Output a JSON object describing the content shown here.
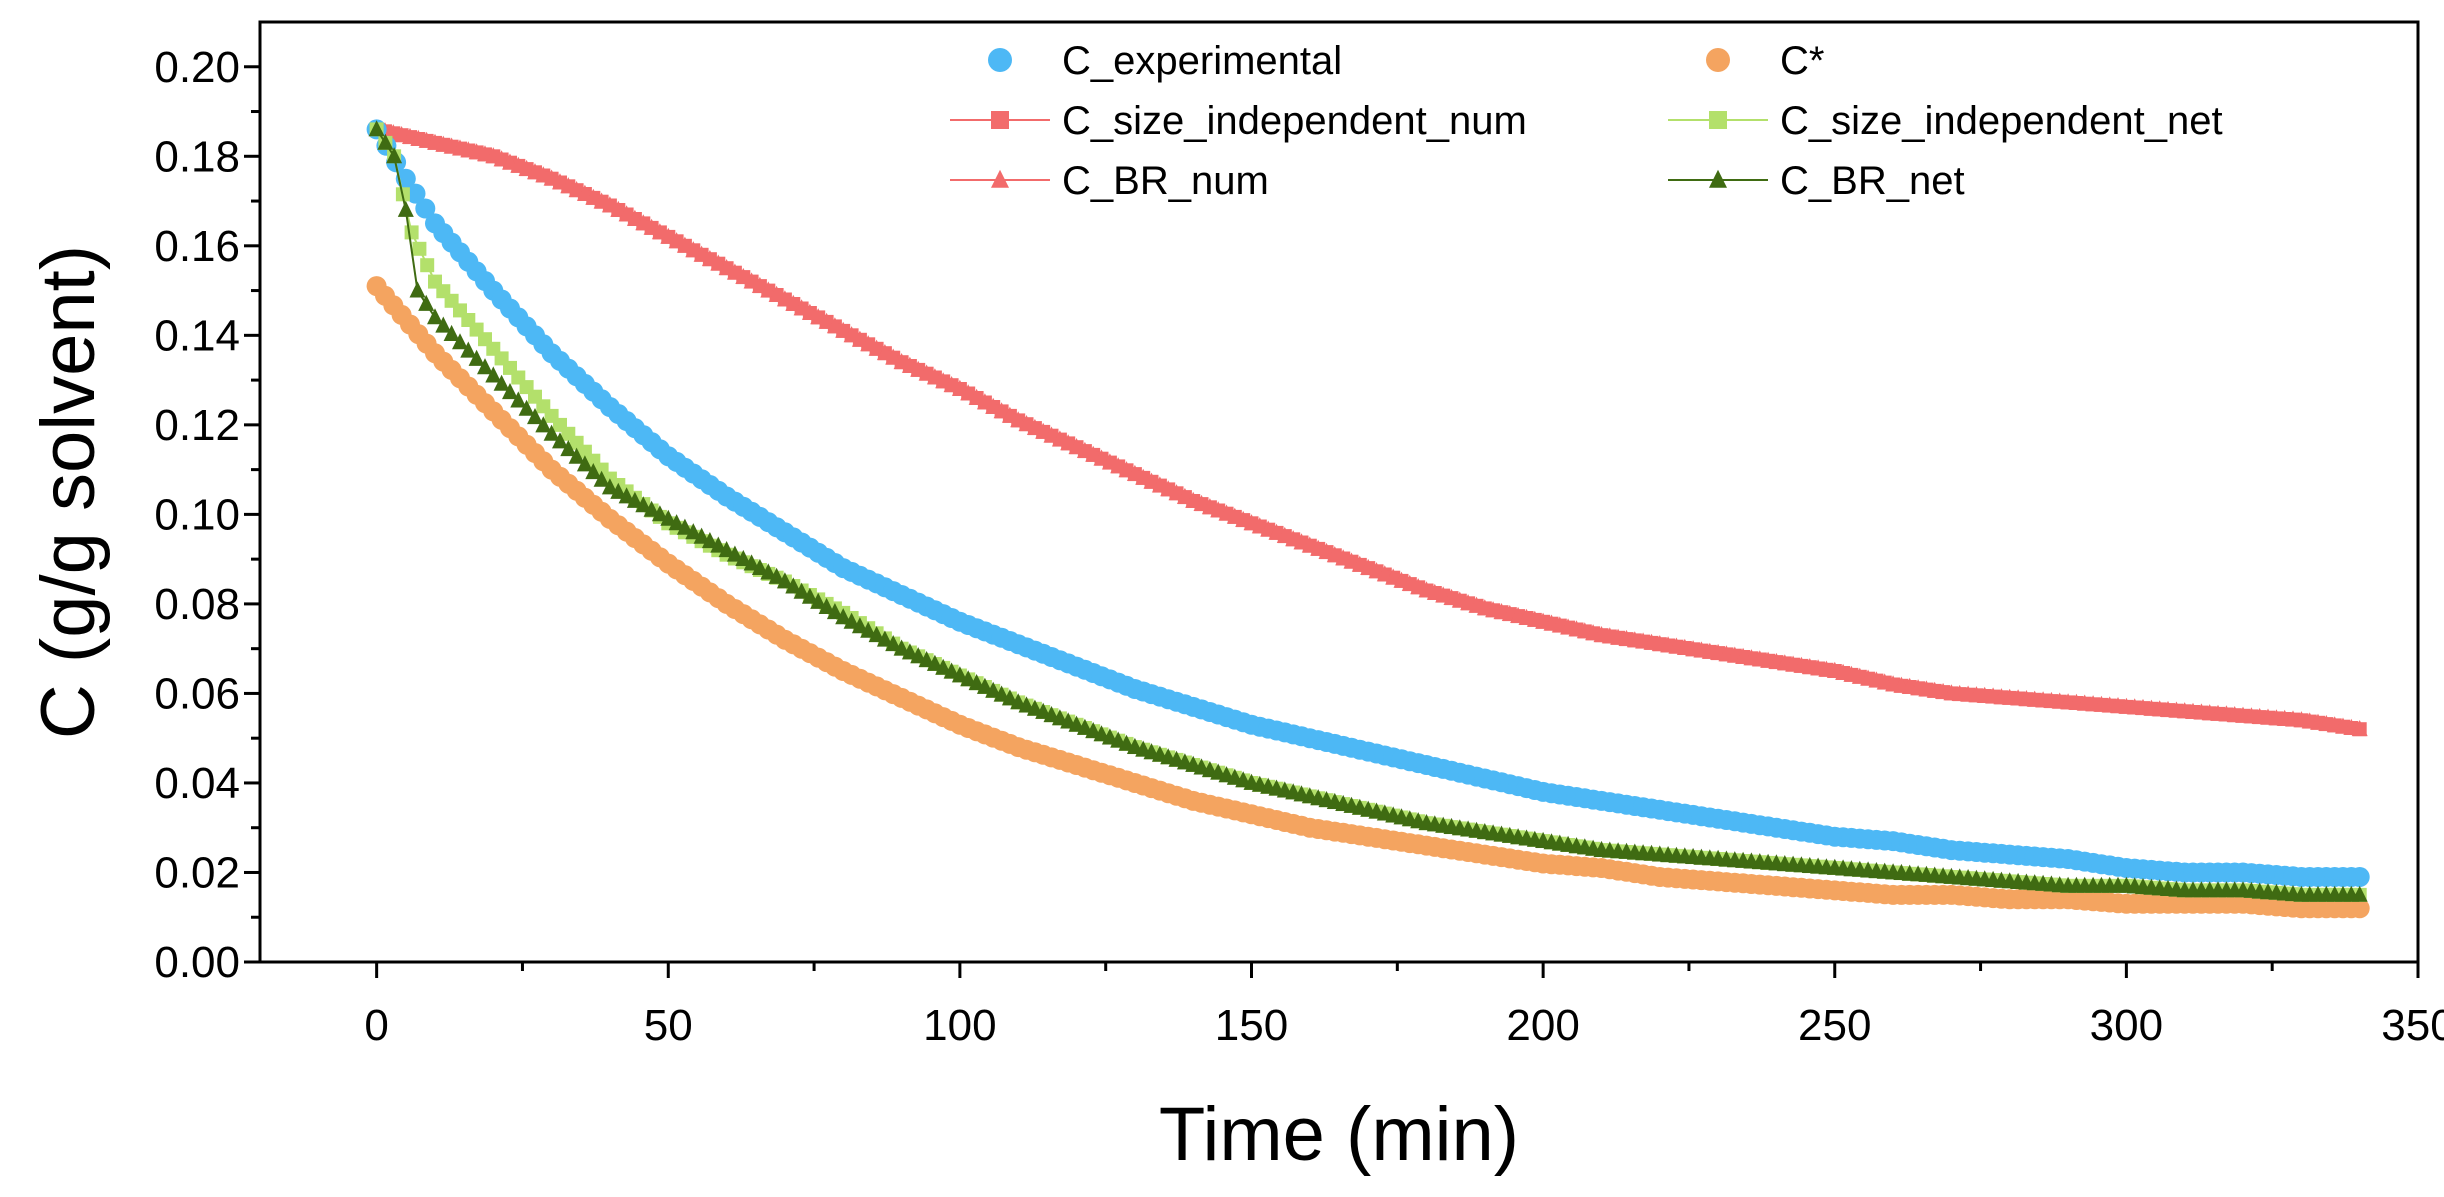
{
  "chart_data": {
    "type": "scatter",
    "title": "",
    "xlabel": "Time (min)",
    "ylabel": "C (g/g solvent)",
    "xlim": [
      -20,
      350
    ],
    "ylim": [
      0,
      0.21
    ],
    "xticks": [
      0,
      50,
      100,
      150,
      200,
      250,
      300,
      350
    ],
    "xtick_labels": [
      "0",
      "50",
      "100",
      "150",
      "200",
      "250",
      "300",
      "350"
    ],
    "yticks": [
      0.0,
      0.02,
      0.04,
      0.06,
      0.08,
      0.1,
      0.12,
      0.14,
      0.16,
      0.18,
      0.2
    ],
    "ytick_labels": [
      "0.00",
      "0.02",
      "0.04",
      "0.06",
      "0.08",
      "0.10",
      "0.12",
      "0.14",
      "0.16",
      "0.18",
      "0.20"
    ],
    "grid": false,
    "legend_position": "top-right",
    "series": [
      {
        "name": "C_size_independent_num",
        "marker": "square",
        "color": "#f26b6b",
        "points": [
          [
            0,
            0.186
          ],
          [
            10,
            0.183
          ],
          [
            20,
            0.18
          ],
          [
            30,
            0.175
          ],
          [
            40,
            0.169
          ],
          [
            50,
            0.162
          ],
          [
            60,
            0.155
          ],
          [
            70,
            0.148
          ],
          [
            80,
            0.141
          ],
          [
            90,
            0.134
          ],
          [
            100,
            0.128
          ],
          [
            110,
            0.121
          ],
          [
            120,
            0.115
          ],
          [
            130,
            0.109
          ],
          [
            140,
            0.103
          ],
          [
            150,
            0.098
          ],
          [
            160,
            0.093
          ],
          [
            170,
            0.088
          ],
          [
            180,
            0.083
          ],
          [
            190,
            0.079
          ],
          [
            200,
            0.076
          ],
          [
            210,
            0.073
          ],
          [
            220,
            0.071
          ],
          [
            230,
            0.069
          ],
          [
            240,
            0.067
          ],
          [
            250,
            0.065
          ],
          [
            260,
            0.062
          ],
          [
            270,
            0.06
          ],
          [
            280,
            0.059
          ],
          [
            290,
            0.058
          ],
          [
            300,
            0.057
          ],
          [
            310,
            0.056
          ],
          [
            320,
            0.055
          ],
          [
            330,
            0.054
          ],
          [
            340,
            0.052
          ]
        ]
      },
      {
        "name": "C_BR_num",
        "marker": "triangle",
        "color": "#f26b6b",
        "points": [
          [
            0,
            0.186
          ],
          [
            10,
            0.183
          ],
          [
            20,
            0.18
          ],
          [
            30,
            0.175
          ],
          [
            40,
            0.169
          ],
          [
            50,
            0.162
          ],
          [
            60,
            0.155
          ],
          [
            70,
            0.148
          ],
          [
            80,
            0.141
          ],
          [
            90,
            0.134
          ],
          [
            100,
            0.128
          ],
          [
            110,
            0.121
          ],
          [
            120,
            0.115
          ],
          [
            130,
            0.109
          ],
          [
            140,
            0.103
          ],
          [
            150,
            0.098
          ],
          [
            160,
            0.093
          ],
          [
            170,
            0.088
          ],
          [
            180,
            0.083
          ],
          [
            190,
            0.079
          ],
          [
            200,
            0.076
          ],
          [
            210,
            0.073
          ],
          [
            220,
            0.071
          ],
          [
            230,
            0.069
          ],
          [
            240,
            0.067
          ],
          [
            250,
            0.065
          ],
          [
            260,
            0.062
          ],
          [
            270,
            0.06
          ],
          [
            280,
            0.059
          ],
          [
            290,
            0.058
          ],
          [
            300,
            0.057
          ],
          [
            310,
            0.056
          ],
          [
            320,
            0.055
          ],
          [
            330,
            0.054
          ],
          [
            340,
            0.052
          ]
        ]
      },
      {
        "name": "C*",
        "marker": "circle",
        "color": "#f4a460",
        "points": [
          [
            0,
            0.151
          ],
          [
            10,
            0.136
          ],
          [
            20,
            0.123
          ],
          [
            30,
            0.11
          ],
          [
            40,
            0.099
          ],
          [
            50,
            0.089
          ],
          [
            60,
            0.08
          ],
          [
            70,
            0.072
          ],
          [
            80,
            0.065
          ],
          [
            90,
            0.059
          ],
          [
            100,
            0.053
          ],
          [
            110,
            0.048
          ],
          [
            120,
            0.044
          ],
          [
            130,
            0.04
          ],
          [
            140,
            0.036
          ],
          [
            150,
            0.033
          ],
          [
            160,
            0.03
          ],
          [
            170,
            0.028
          ],
          [
            180,
            0.026
          ],
          [
            190,
            0.024
          ],
          [
            200,
            0.022
          ],
          [
            210,
            0.021
          ],
          [
            220,
            0.019
          ],
          [
            230,
            0.018
          ],
          [
            240,
            0.017
          ],
          [
            250,
            0.016
          ],
          [
            260,
            0.015
          ],
          [
            270,
            0.015
          ],
          [
            280,
            0.014
          ],
          [
            290,
            0.014
          ],
          [
            300,
            0.013
          ],
          [
            310,
            0.013
          ],
          [
            320,
            0.013
          ],
          [
            330,
            0.012
          ],
          [
            340,
            0.012
          ]
        ]
      },
      {
        "name": "C_experimental",
        "marker": "circle",
        "color": "#4db8f5",
        "points": [
          [
            0,
            0.186
          ],
          [
            5,
            0.175
          ],
          [
            10,
            0.165
          ],
          [
            20,
            0.15
          ],
          [
            30,
            0.136
          ],
          [
            40,
            0.124
          ],
          [
            50,
            0.113
          ],
          [
            60,
            0.104
          ],
          [
            70,
            0.096
          ],
          [
            80,
            0.088
          ],
          [
            90,
            0.082
          ],
          [
            100,
            0.076
          ],
          [
            110,
            0.071
          ],
          [
            120,
            0.066
          ],
          [
            130,
            0.061
          ],
          [
            140,
            0.057
          ],
          [
            150,
            0.053
          ],
          [
            160,
            0.05
          ],
          [
            170,
            0.047
          ],
          [
            180,
            0.044
          ],
          [
            190,
            0.041
          ],
          [
            200,
            0.038
          ],
          [
            210,
            0.036
          ],
          [
            220,
            0.034
          ],
          [
            230,
            0.032
          ],
          [
            240,
            0.03
          ],
          [
            250,
            0.028
          ],
          [
            260,
            0.027
          ],
          [
            270,
            0.025
          ],
          [
            280,
            0.024
          ],
          [
            290,
            0.023
          ],
          [
            300,
            0.021
          ],
          [
            310,
            0.02
          ],
          [
            320,
            0.02
          ],
          [
            330,
            0.019
          ],
          [
            340,
            0.019
          ]
        ]
      },
      {
        "name": "C_size_independent_net",
        "marker": "square",
        "color": "#b3e06b",
        "points": [
          [
            0,
            0.186
          ],
          [
            3,
            0.18
          ],
          [
            6,
            0.163
          ],
          [
            10,
            0.152
          ],
          [
            20,
            0.137
          ],
          [
            30,
            0.122
          ],
          [
            40,
            0.108
          ],
          [
            50,
            0.098
          ],
          [
            60,
            0.091
          ],
          [
            70,
            0.085
          ],
          [
            80,
            0.078
          ],
          [
            90,
            0.07
          ],
          [
            100,
            0.064
          ],
          [
            110,
            0.058
          ],
          [
            120,
            0.053
          ],
          [
            130,
            0.048
          ],
          [
            140,
            0.044
          ],
          [
            150,
            0.04
          ],
          [
            160,
            0.037
          ],
          [
            170,
            0.034
          ],
          [
            180,
            0.031
          ],
          [
            190,
            0.029
          ],
          [
            200,
            0.027
          ],
          [
            210,
            0.025
          ],
          [
            220,
            0.024
          ],
          [
            230,
            0.023
          ],
          [
            240,
            0.022
          ],
          [
            250,
            0.021
          ],
          [
            260,
            0.02
          ],
          [
            270,
            0.019
          ],
          [
            280,
            0.018
          ],
          [
            290,
            0.017
          ],
          [
            300,
            0.017
          ],
          [
            310,
            0.016
          ],
          [
            320,
            0.016
          ],
          [
            330,
            0.015
          ],
          [
            340,
            0.015
          ]
        ]
      },
      {
        "name": "C_BR_net",
        "marker": "triangle",
        "color": "#3f6b12",
        "points": [
          [
            0,
            0.186
          ],
          [
            3,
            0.18
          ],
          [
            5,
            0.168
          ],
          [
            7,
            0.15
          ],
          [
            10,
            0.144
          ],
          [
            20,
            0.131
          ],
          [
            30,
            0.118
          ],
          [
            40,
            0.106
          ],
          [
            50,
            0.099
          ],
          [
            60,
            0.092
          ],
          [
            70,
            0.085
          ],
          [
            80,
            0.077
          ],
          [
            90,
            0.07
          ],
          [
            100,
            0.064
          ],
          [
            110,
            0.058
          ],
          [
            120,
            0.053
          ],
          [
            130,
            0.048
          ],
          [
            140,
            0.044
          ],
          [
            150,
            0.04
          ],
          [
            160,
            0.037
          ],
          [
            170,
            0.034
          ],
          [
            180,
            0.031
          ],
          [
            190,
            0.029
          ],
          [
            200,
            0.027
          ],
          [
            210,
            0.025
          ],
          [
            220,
            0.024
          ],
          [
            230,
            0.023
          ],
          [
            240,
            0.022
          ],
          [
            250,
            0.021
          ],
          [
            260,
            0.02
          ],
          [
            270,
            0.019
          ],
          [
            280,
            0.018
          ],
          [
            290,
            0.017
          ],
          [
            300,
            0.017
          ],
          [
            310,
            0.016
          ],
          [
            320,
            0.016
          ],
          [
            330,
            0.015
          ],
          [
            340,
            0.015
          ]
        ]
      }
    ],
    "legend": [
      {
        "label": "C_experimental",
        "marker": "circle",
        "color": "#4db8f5",
        "line": false
      },
      {
        "label": "C*",
        "marker": "circle",
        "color": "#f4a460",
        "line": false
      },
      {
        "label": "C_size_independent_num",
        "marker": "square",
        "color": "#f26b6b",
        "line": true
      },
      {
        "label": "C_size_independent_net",
        "marker": "square",
        "color": "#b3e06b",
        "line": true
      },
      {
        "label": "C_BR_num",
        "marker": "triangle",
        "color": "#f26b6b",
        "line": true
      },
      {
        "label": "C_BR_net",
        "marker": "triangle",
        "color": "#3f6b12",
        "line": true
      }
    ]
  }
}
